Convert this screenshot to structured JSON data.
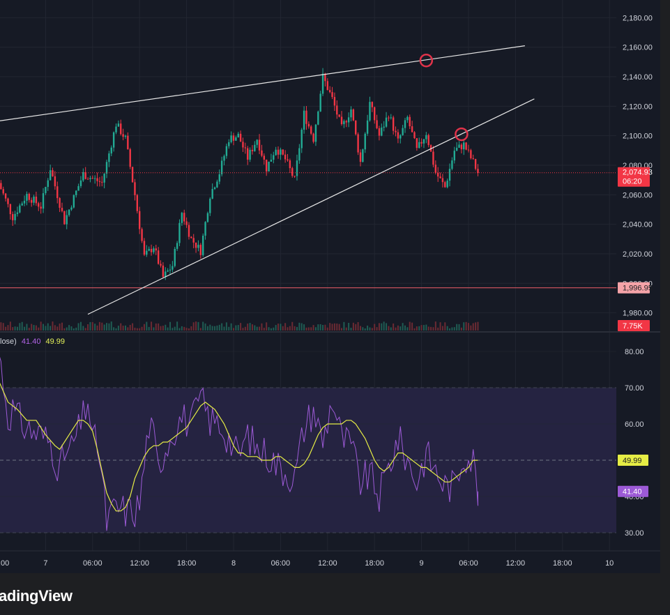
{
  "chart_data": [
    {
      "type": "candlestick",
      "price_axis": {
        "ylim": [
          1968,
          2192
        ],
        "ticks": [
          "2,180.00",
          "2,160.00",
          "2,140.00",
          "2,120.00",
          "2,100.00",
          "2,080.00",
          "2,060.00",
          "2,040.00",
          "2,020.00",
          "2,000.00",
          "1,980.00"
        ]
      },
      "candles_summary": {
        "points": [
          [
            0,
            2068
          ],
          [
            3,
            2045
          ],
          [
            6,
            2060
          ],
          [
            9,
            2052
          ],
          [
            11,
            2078
          ],
          [
            14,
            2042
          ],
          [
            18,
            2074
          ],
          [
            22,
            2068
          ],
          [
            25,
            2108
          ],
          [
            27,
            2098
          ],
          [
            29,
            2060
          ],
          [
            31,
            2018
          ],
          [
            33,
            2025
          ],
          [
            35,
            2004
          ],
          [
            37,
            2012
          ],
          [
            39,
            2048
          ],
          [
            41,
            2030
          ],
          [
            43,
            2022
          ],
          [
            45,
            2060
          ],
          [
            47,
            2075
          ],
          [
            49,
            2098
          ],
          [
            51,
            2100
          ],
          [
            53,
            2085
          ],
          [
            55,
            2098
          ],
          [
            57,
            2078
          ],
          [
            59,
            2092
          ],
          [
            61,
            2084
          ],
          [
            63,
            2070
          ],
          [
            65,
            2115
          ],
          [
            67,
            2098
          ],
          [
            69,
            2140
          ],
          [
            71,
            2125
          ],
          [
            73,
            2105
          ],
          [
            75,
            2118
          ],
          [
            77,
            2082
          ],
          [
            79,
            2122
          ],
          [
            81,
            2100
          ],
          [
            83,
            2115
          ],
          [
            85,
            2096
          ],
          [
            87,
            2112
          ],
          [
            89,
            2090
          ],
          [
            91,
            2102
          ],
          [
            93,
            2075
          ],
          [
            95,
            2065
          ],
          [
            97,
            2090
          ],
          [
            99,
            2094
          ],
          [
            101,
            2082
          ],
          [
            102,
            2074.93
          ]
        ]
      },
      "last_price": "2,074.93",
      "countdown": "06:20",
      "horizontal_line": "1,996.95",
      "volume_label": "7.75K",
      "rising_wedge": {
        "upper": [
          [
            0,
            2110
          ],
          [
            112,
            2161
          ]
        ],
        "lower": [
          [
            19,
            1979
          ],
          [
            114,
            2125
          ]
        ]
      },
      "markers": [
        [
          91,
          2151
        ],
        [
          98.5,
          2101
        ]
      ]
    },
    {
      "type": "line",
      "legend_prefix": "lose)",
      "rsi_value": "41.40",
      "ma_value": "49.99",
      "ylim": [
        25,
        85
      ],
      "ticks": [
        "80.00",
        "70.00",
        "60.00",
        "40.00",
        "30.00"
      ],
      "bands": [
        30,
        50,
        70
      ],
      "series": [
        {
          "values": [
            [
              0,
              80
            ],
            [
              1,
              72
            ],
            [
              2,
              62
            ],
            [
              3,
              64
            ],
            [
              5,
              60
            ],
            [
              7,
              58
            ],
            [
              9,
              57
            ],
            [
              11,
              55
            ],
            [
              13,
              47
            ],
            [
              14,
              52
            ],
            [
              15,
              52
            ],
            [
              17,
              58
            ],
            [
              18,
              62
            ],
            [
              19,
              67
            ],
            [
              20,
              55
            ],
            [
              21,
              55
            ],
            [
              22,
              45
            ],
            [
              23,
              33
            ],
            [
              25,
              37
            ],
            [
              27,
              36
            ],
            [
              29,
              36
            ],
            [
              30,
              38
            ],
            [
              31,
              49
            ],
            [
              32,
              60
            ],
            [
              33,
              56
            ],
            [
              34,
              47
            ],
            [
              35,
              52
            ],
            [
              37,
              58
            ],
            [
              39,
              62
            ],
            [
              41,
              60
            ],
            [
              43,
              67
            ],
            [
              45,
              61
            ],
            [
              47,
              60
            ],
            [
              49,
              56
            ],
            [
              51,
              51
            ],
            [
              53,
              57
            ],
            [
              55,
              53
            ],
            [
              57,
              52
            ],
            [
              59,
              49
            ],
            [
              61,
              47
            ],
            [
              63,
              45
            ],
            [
              65,
              59
            ],
            [
              67,
              64
            ],
            [
              69,
              55
            ],
            [
              71,
              67
            ],
            [
              73,
              56
            ],
            [
              75,
              54
            ],
            [
              77,
              44
            ],
            [
              79,
              46
            ],
            [
              81,
              40
            ],
            [
              83,
              48
            ],
            [
              85,
              56
            ],
            [
              87,
              50
            ],
            [
              89,
              44
            ],
            [
              91,
              52
            ],
            [
              93,
              47
            ],
            [
              95,
              43
            ],
            [
              97,
              43
            ],
            [
              99,
              52
            ],
            [
              101,
              50
            ],
            [
              102,
              41.4
            ]
          ]
        },
        {
          "values": [
            [
              0,
              72
            ],
            [
              2,
              66
            ],
            [
              4,
              64
            ],
            [
              6,
              61
            ],
            [
              8,
              61
            ],
            [
              10,
              57
            ],
            [
              12,
              54
            ],
            [
              13,
              53
            ],
            [
              14,
              55
            ],
            [
              15,
              57
            ],
            [
              16,
              59
            ],
            [
              17,
              61
            ],
            [
              18,
              61
            ],
            [
              19,
              60
            ],
            [
              20,
              58
            ],
            [
              21,
              53
            ],
            [
              22,
              47
            ],
            [
              23,
              41
            ],
            [
              24,
              38
            ],
            [
              25,
              36
            ],
            [
              26,
              36
            ],
            [
              27,
              37
            ],
            [
              28,
              40
            ],
            [
              29,
              45
            ],
            [
              30,
              48
            ],
            [
              31,
              51
            ],
            [
              32,
              53
            ],
            [
              33,
              54
            ],
            [
              34,
              54
            ],
            [
              35,
              55
            ],
            [
              36,
              55
            ],
            [
              37,
              56
            ],
            [
              38,
              57
            ],
            [
              39,
              58
            ],
            [
              40,
              59
            ],
            [
              41,
              61
            ],
            [
              42,
              63
            ],
            [
              43,
              65
            ],
            [
              44,
              66
            ],
            [
              45,
              65
            ],
            [
              46,
              64
            ],
            [
              47,
              62
            ],
            [
              48,
              60
            ],
            [
              49,
              57
            ],
            [
              50,
              54
            ],
            [
              51,
              52
            ],
            [
              52,
              52
            ],
            [
              53,
              51
            ],
            [
              54,
              51
            ],
            [
              55,
              51
            ],
            [
              56,
              50
            ],
            [
              57,
              50
            ],
            [
              58,
              50
            ],
            [
              59,
              51
            ],
            [
              60,
              51
            ],
            [
              61,
              50
            ],
            [
              62,
              49
            ],
            [
              63,
              48
            ],
            [
              64,
              48
            ],
            [
              65,
              49
            ],
            [
              66,
              51
            ],
            [
              67,
              54
            ],
            [
              68,
              57
            ],
            [
              69,
              59
            ],
            [
              70,
              60
            ],
            [
              71,
              60
            ],
            [
              72,
              60
            ],
            [
              73,
              60
            ],
            [
              74,
              61
            ],
            [
              75,
              61
            ],
            [
              76,
              60
            ],
            [
              77,
              58
            ],
            [
              78,
              56
            ],
            [
              79,
              53
            ],
            [
              80,
              50
            ],
            [
              81,
              48
            ],
            [
              82,
              47
            ],
            [
              83,
              48
            ],
            [
              84,
              50
            ],
            [
              85,
              52
            ],
            [
              86,
              52
            ],
            [
              87,
              51
            ],
            [
              88,
              50
            ],
            [
              89,
              49
            ],
            [
              90,
              48
            ],
            [
              91,
              48
            ],
            [
              92,
              47
            ],
            [
              93,
              46
            ],
            [
              94,
              45
            ],
            [
              95,
              44
            ],
            [
              96,
              44
            ],
            [
              97,
              45
            ],
            [
              98,
              46
            ],
            [
              99,
              47
            ],
            [
              100,
              48
            ],
            [
              101,
              50
            ],
            [
              102,
              49.99
            ]
          ]
        }
      ]
    }
  ],
  "time_axis": {
    "labels": [
      {
        "t": 0,
        "text": ":00"
      },
      {
        "t": 10,
        "text": "7"
      },
      {
        "t": 20,
        "text": "06:00"
      },
      {
        "t": 30,
        "text": "12:00"
      },
      {
        "t": 40,
        "text": "18:00"
      },
      {
        "t": 50,
        "text": "8"
      },
      {
        "t": 60,
        "text": "06:00"
      },
      {
        "t": 70,
        "text": "12:00"
      },
      {
        "t": 80,
        "text": "18:00"
      },
      {
        "t": 90,
        "text": "9"
      },
      {
        "t": 100,
        "text": "06:00"
      },
      {
        "t": 110,
        "text": "12:00"
      },
      {
        "t": 120,
        "text": "18:00"
      },
      {
        "t": 130,
        "text": "10"
      }
    ]
  },
  "brand": "adingView",
  "colors": {
    "bg": "#161a25",
    "up": "#22ab94",
    "down": "#f23645",
    "rsi": "#9c5ad6",
    "rsi_ma": "#e6ed45",
    "band_fill": "#252341",
    "marker": "#e0334a",
    "wedge": "#e8e8e8",
    "hline": "#f25f6a"
  }
}
